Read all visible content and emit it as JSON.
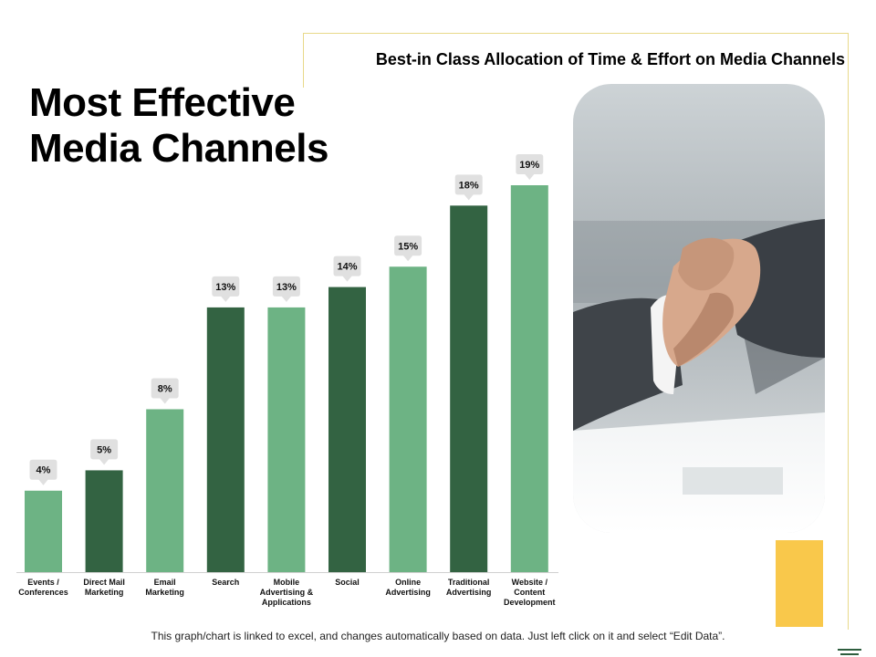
{
  "subtitle": "Best-in Class Allocation of Time & Effort on Media Channels",
  "title_lines": [
    "Most Effective",
    "Media Channels"
  ],
  "footnote": "This graph/chart is linked to excel, and changes automatically based on data. Just left click on it and select “Edit Data”.",
  "colors": {
    "light_green": "#6db384",
    "dark_green": "#336342",
    "accent_yellow": "#f9c84b",
    "callout": "#e0e0e0"
  },
  "photo": {
    "icon": "handshake-photo"
  },
  "chart_data": {
    "type": "bar",
    "categories": [
      "Events /\nConferences",
      "Direct Mail\nMarketing",
      "Email\nMarketing",
      "Search",
      "Mobile\nAdvertising &\nApplications",
      "Social",
      "Online\nAdvertising",
      "Traditional\nAdvertising",
      "Website /\nContent\nDevelopment"
    ],
    "values": [
      4,
      5,
      8,
      13,
      13,
      14,
      15,
      18,
      19
    ],
    "value_labels": [
      "4%",
      "5%",
      "8%",
      "13%",
      "13%",
      "14%",
      "15%",
      "18%",
      "19%"
    ],
    "bar_colors": [
      "light",
      "dark",
      "light",
      "dark",
      "light",
      "dark",
      "light",
      "dark",
      "light"
    ],
    "ylim": [
      0,
      19
    ],
    "grid": false,
    "legend": "none"
  }
}
